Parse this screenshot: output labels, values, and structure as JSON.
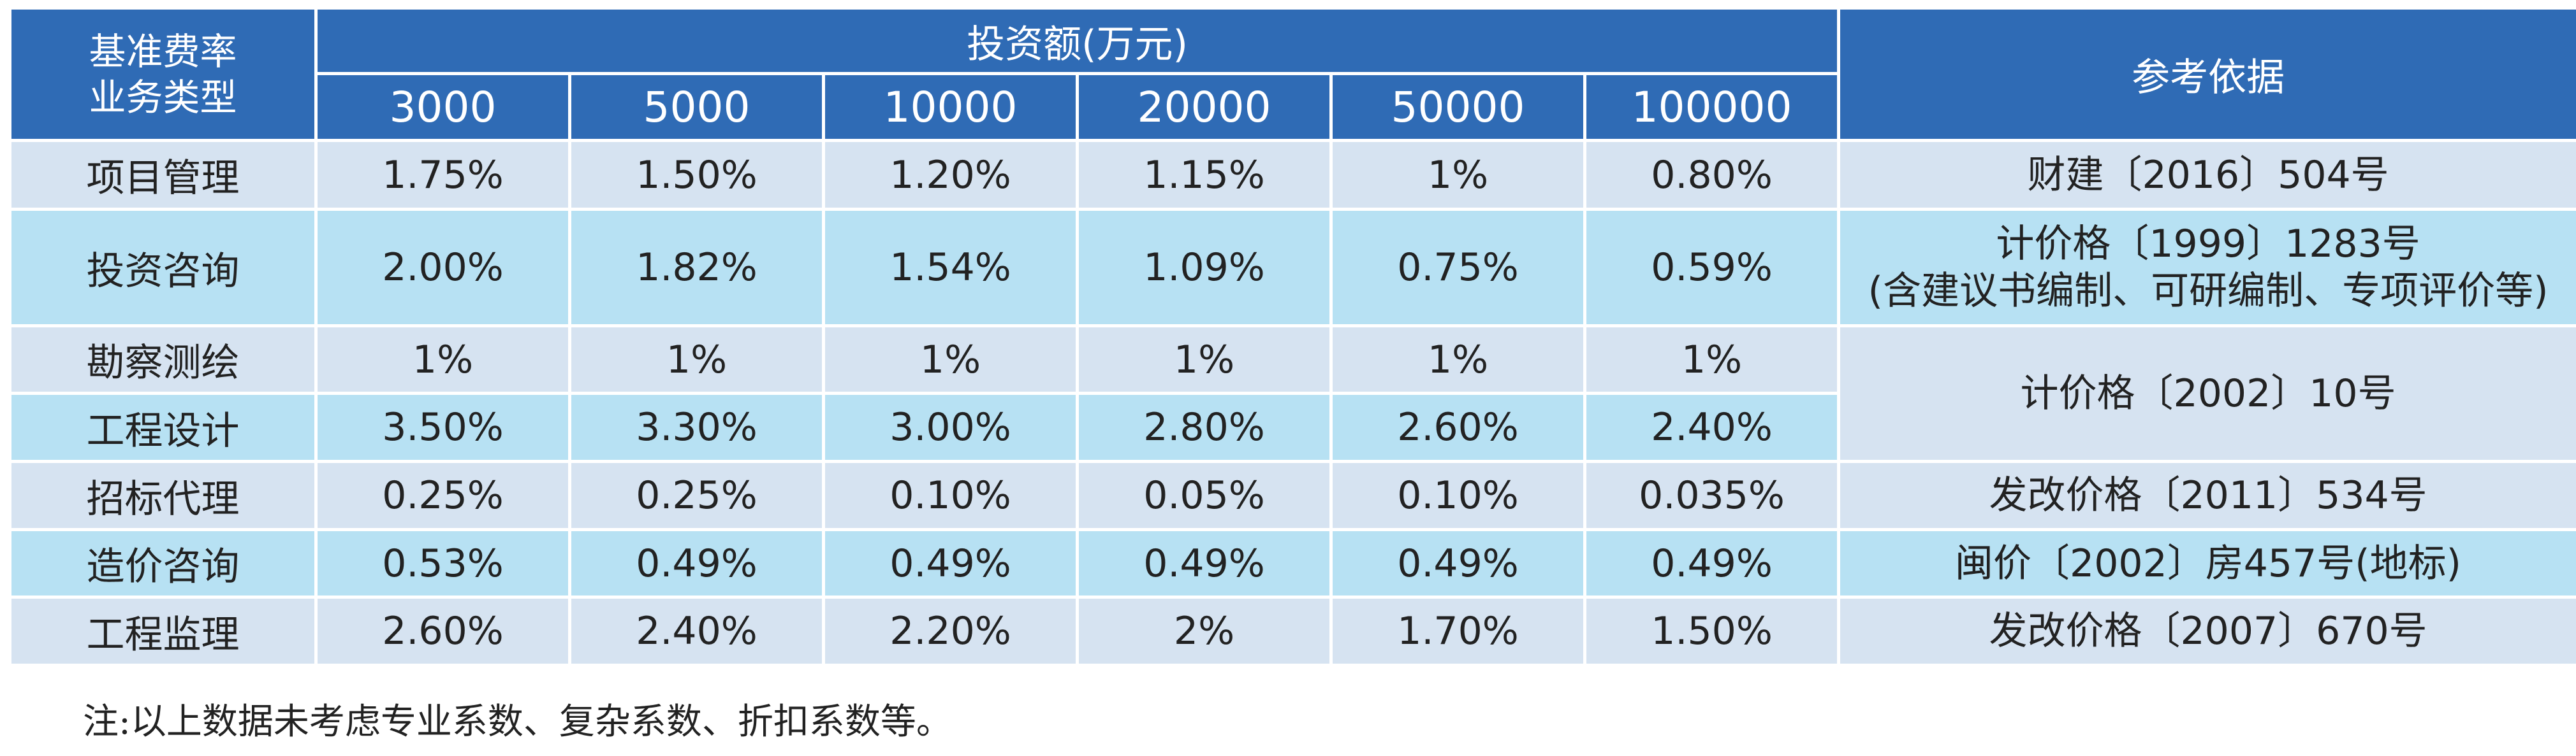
{
  "header": {
    "corner_line1": "基准费率",
    "corner_line2": "业务类型",
    "investment_title": "投资额(万元)",
    "amounts": [
      "3000",
      "5000",
      "10000",
      "20000",
      "50000",
      "100000"
    ],
    "basis_title": "参考依据"
  },
  "rows": [
    {
      "type": "项目管理",
      "rates": [
        "1.75%",
        "1.50%",
        "1.20%",
        "1.15%",
        "1%",
        "0.80%"
      ],
      "basis": [
        "财建〔2016〕504号"
      ]
    },
    {
      "type": "投资咨询",
      "rates": [
        "2.00%",
        "1.82%",
        "1.54%",
        "1.09%",
        "0.75%",
        "0.59%"
      ],
      "basis": [
        "计价格〔1999〕1283号",
        "(含建议书编制、可研编制、专项评价等)"
      ]
    },
    {
      "type": "勘察测绘",
      "rates": [
        "1%",
        "1%",
        "1%",
        "1%",
        "1%",
        "1%"
      ],
      "basis": [
        "计价格〔2002〕10号"
      ]
    },
    {
      "type": "工程设计",
      "rates": [
        "3.50%",
        "3.30%",
        "3.00%",
        "2.80%",
        "2.60%",
        "2.40%"
      ]
    },
    {
      "type": "招标代理",
      "rates": [
        "0.25%",
        "0.25%",
        "0.10%",
        "0.05%",
        "0.10%",
        "0.035%"
      ],
      "basis": [
        "发改价格〔2011〕534号"
      ]
    },
    {
      "type": "造价咨询",
      "rates": [
        "0.53%",
        "0.49%",
        "0.49%",
        "0.49%",
        "0.49%",
        "0.49%"
      ],
      "basis": [
        "闽价〔2002〕房457号(地标)"
      ]
    },
    {
      "type": "工程监理",
      "rates": [
        "2.60%",
        "2.40%",
        "2.20%",
        "2%",
        "1.70%",
        "1.50%"
      ],
      "basis": [
        "发改价格〔2007〕670号"
      ]
    }
  ],
  "note": "注:以上数据未考虑专业系数、复杂系数、折扣系数等。",
  "colors": {
    "header_bg": "#2f6bb5",
    "row_light": "#d6e3f1",
    "row_cyan": "#b7e1f3"
  }
}
